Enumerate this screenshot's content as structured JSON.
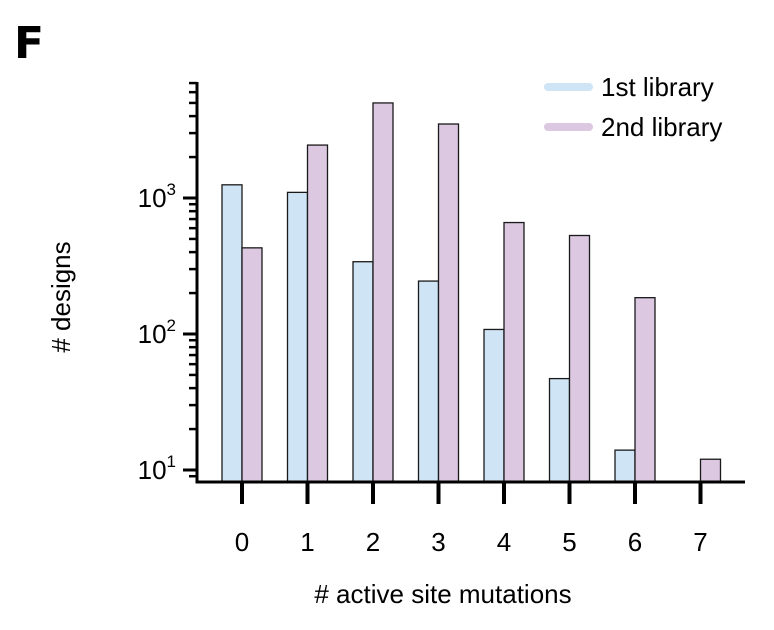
{
  "panel_label": "F",
  "chart_data": {
    "type": "bar",
    "categories": [
      "0",
      "1",
      "2",
      "3",
      "4",
      "5",
      "6",
      "7"
    ],
    "series": [
      {
        "name": "1st library",
        "color": "#cfe4f5",
        "values": [
          1250,
          1100,
          340,
          245,
          108,
          47,
          14,
          null
        ]
      },
      {
        "name": "2nd library",
        "color": "#dcc8e1",
        "values": [
          430,
          2450,
          5000,
          3500,
          660,
          530,
          185,
          12
        ]
      }
    ],
    "xlabel": "# active site mutations",
    "ylabel": "# designs",
    "yscale": "log",
    "ylim": [
      7,
      8000
    ],
    "yticks": [
      {
        "base": "10",
        "exp": "1",
        "value": 10
      },
      {
        "base": "10",
        "exp": "2",
        "value": 100
      },
      {
        "base": "10",
        "exp": "3",
        "value": 1000
      }
    ],
    "grid": false,
    "legend_position": "top-right"
  }
}
